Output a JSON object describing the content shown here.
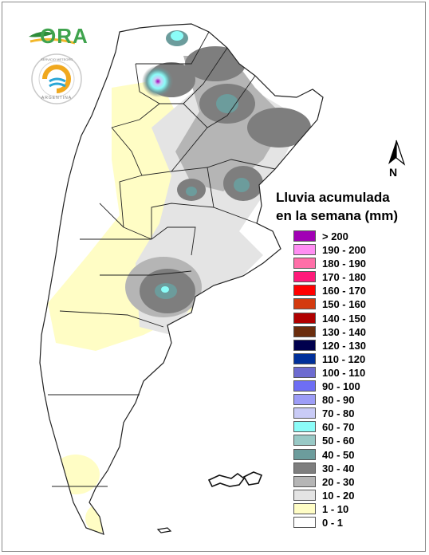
{
  "logo": {
    "ora_text": "ORA",
    "smn_ring_text": "SERVICIO METEOROLÓGICO NACIONAL",
    "smn_country": "ARGENTINA"
  },
  "north_arrow": {
    "label": "N"
  },
  "legend": {
    "title_line1": "Lluvia acumulada",
    "title_line2": "en la semana (mm)",
    "items": [
      {
        "label": "> 200",
        "color": "#a100b5"
      },
      {
        "label": "190 - 200",
        "color": "#ff8ef2"
      },
      {
        "label": "180 - 190",
        "color": "#ff6fa8"
      },
      {
        "label": "170 - 180",
        "color": "#ff1a7a"
      },
      {
        "label": "160 - 170",
        "color": "#ff0000"
      },
      {
        "label": "150 - 160",
        "color": "#d43a0f"
      },
      {
        "label": "140 - 150",
        "color": "#b00000"
      },
      {
        "label": "130 - 140",
        "color": "#6b2d0d"
      },
      {
        "label": "120 - 130",
        "color": "#00004d"
      },
      {
        "label": "110 - 120",
        "color": "#00309a"
      },
      {
        "label": "100 - 110",
        "color": "#6d6bd0"
      },
      {
        "label": "90 - 100",
        "color": "#6e6ef4"
      },
      {
        "label": "80 - 90",
        "color": "#9d9df7"
      },
      {
        "label": "70 - 80",
        "color": "#c9cbf6"
      },
      {
        "label": "60 - 70",
        "color": "#8bfcf8"
      },
      {
        "label": "50 - 60",
        "color": "#99c9c6"
      },
      {
        "label": "40 - 50",
        "color": "#6c9c9c"
      },
      {
        "label": "30 - 40",
        "color": "#7e7e7e"
      },
      {
        "label": "20 - 30",
        "color": "#b5b5b5"
      },
      {
        "label": "10 - 20",
        "color": "#e4e4e4"
      },
      {
        "label": "1 - 10",
        "color": "#fffdc5"
      },
      {
        "label": "0 - 1",
        "color": "#ffffff"
      }
    ]
  }
}
